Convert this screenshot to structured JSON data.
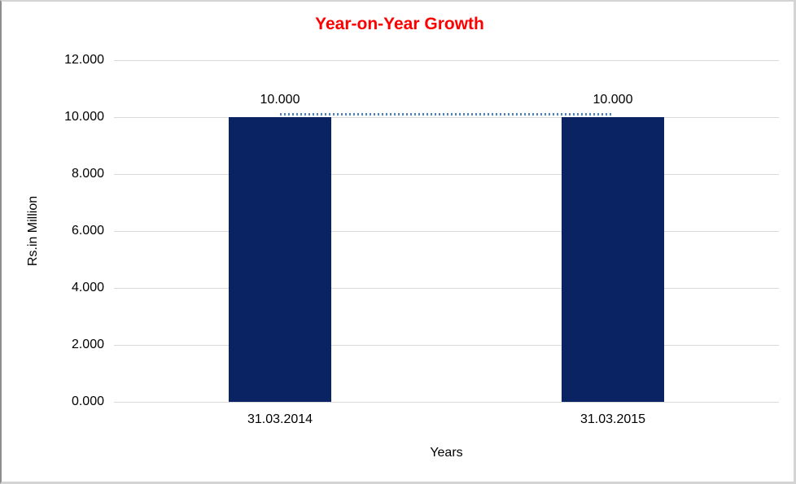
{
  "title": "Year-on-Year Growth",
  "colors": {
    "title": "#ff0000",
    "bar": "#0a2463",
    "gridline": "#d9d9d9",
    "trendline": "#4f81bd",
    "text": "#000000",
    "frame_border": "#d4d4d4"
  },
  "chart_data": {
    "type": "bar",
    "title": "Year-on-Year Growth",
    "categories": [
      "31.03.2014",
      "31.03.2015"
    ],
    "values": [
      10,
      10
    ],
    "value_labels": [
      "10.000",
      "10.000"
    ],
    "xlabel": "Years",
    "ylabel": "Rs.in Million",
    "ylim": [
      0,
      12
    ],
    "ytick_values": [
      12,
      10,
      8,
      6,
      4,
      2,
      0
    ],
    "ytick_labels": [
      "12.000",
      "10.000",
      "8.000",
      "6.000",
      "4.000",
      "2.000",
      "0.000"
    ],
    "grid": true,
    "legend": "none",
    "trendline": {
      "style": "dotted",
      "value": 10,
      "spans": "between-bar-centers"
    }
  }
}
